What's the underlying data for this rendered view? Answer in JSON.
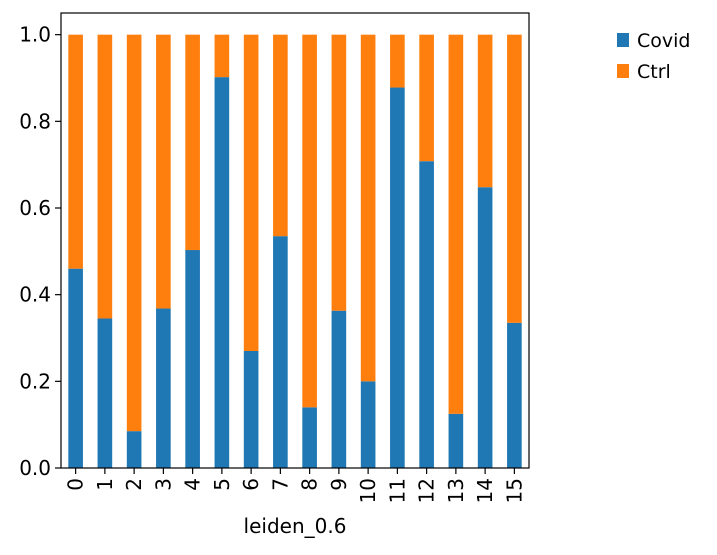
{
  "chart_data": {
    "type": "bar",
    "stacked": true,
    "xlabel": "leiden_0.6",
    "ylabel": "",
    "ylim": [
      0,
      1.05
    ],
    "yticks": [
      0.0,
      0.2,
      0.4,
      0.6,
      0.8,
      1.0
    ],
    "ytick_labels": [
      "0.0",
      "0.2",
      "0.4",
      "0.6",
      "0.8",
      "1.0"
    ],
    "categories": [
      "0",
      "1",
      "2",
      "3",
      "4",
      "5",
      "6",
      "7",
      "8",
      "9",
      "10",
      "11",
      "12",
      "13",
      "14",
      "15"
    ],
    "series": [
      {
        "name": "Covid",
        "color": "#1f77b4",
        "values": [
          0.46,
          0.345,
          0.085,
          0.368,
          0.503,
          0.902,
          0.27,
          0.535,
          0.14,
          0.363,
          0.2,
          0.878,
          0.708,
          0.125,
          0.648,
          0.335
        ]
      },
      {
        "name": "Ctrl",
        "color": "#ff7f0e",
        "values": [
          0.54,
          0.655,
          0.915,
          0.632,
          0.497,
          0.098,
          0.73,
          0.465,
          0.86,
          0.637,
          0.8,
          0.122,
          0.292,
          0.875,
          0.352,
          0.665
        ]
      }
    ],
    "grid": false,
    "legend_placement": "outside right"
  }
}
